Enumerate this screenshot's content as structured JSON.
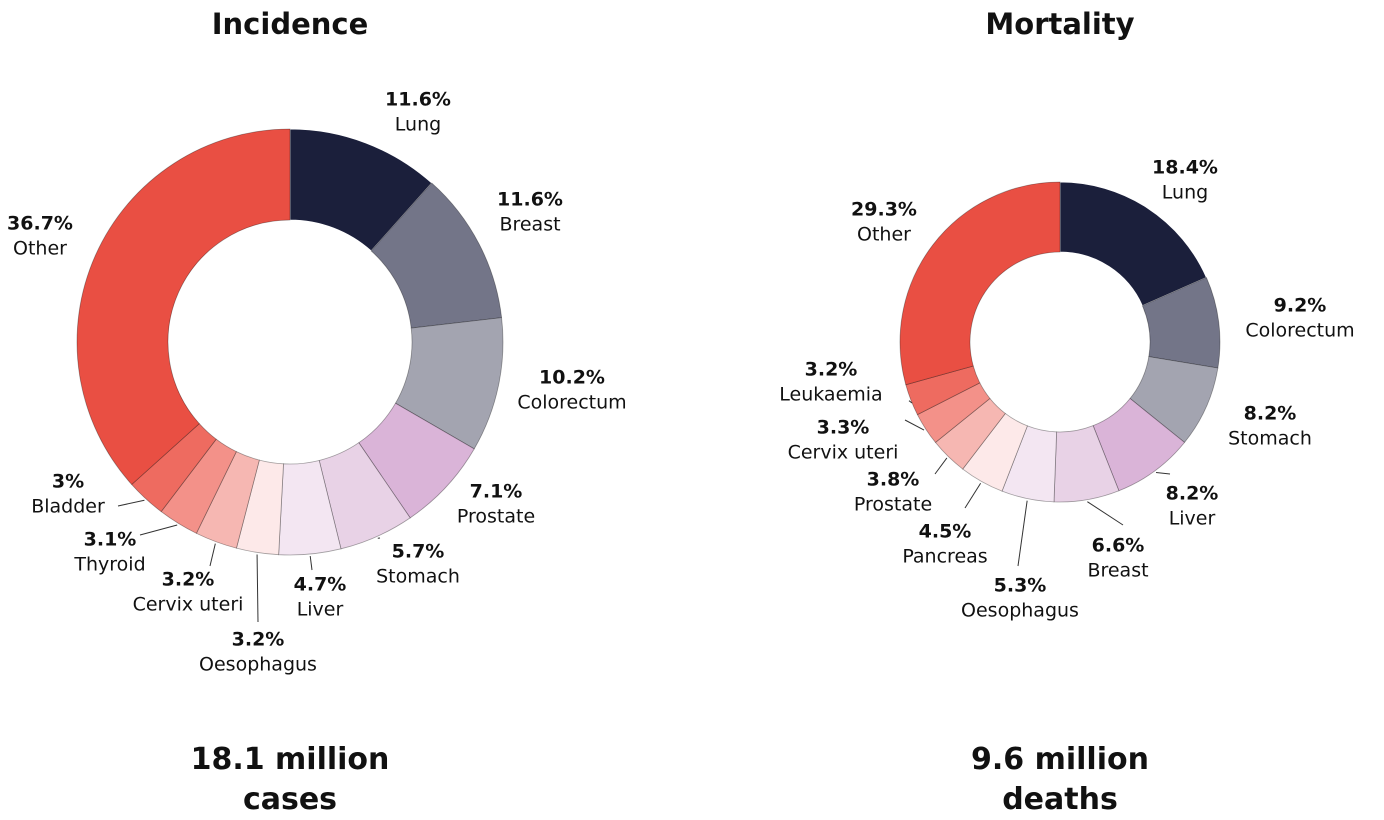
{
  "chart_data": [
    {
      "type": "donut",
      "title": "Incidence",
      "caption": "18.1 million cases",
      "categories": [
        "Lung",
        "Breast",
        "Colorectum",
        "Prostate",
        "Stomach",
        "Liver",
        "Oesophagus",
        "Cervix uteri",
        "Thyroid",
        "Bladder",
        "Other"
      ],
      "values": [
        11.6,
        11.6,
        10.2,
        7.1,
        5.7,
        4.7,
        3.2,
        3.2,
        3.1,
        3,
        36.7
      ],
      "value_labels": [
        "11.6%",
        "11.6%",
        "10.2%",
        "7.1%",
        "5.7%",
        "4.7%",
        "3.2%",
        "3.2%",
        "3.1%",
        "3%",
        "36.7%"
      ],
      "colors": [
        "#1b1f3b",
        "#737588",
        "#a3a4b0",
        "#dab4d8",
        "#e8d2e6",
        "#f3e6f2",
        "#fde9e9",
        "#f6b7b2",
        "#f39189",
        "#ee6b60",
        "#e94f43"
      ]
    },
    {
      "type": "donut",
      "title": "Mortality",
      "caption": "9.6 million deaths",
      "categories": [
        "Lung",
        "Colorectum",
        "Stomach",
        "Liver",
        "Breast",
        "Oesophagus",
        "Pancreas",
        "Prostate",
        "Cervix uteri",
        "Leukaemia",
        "Other"
      ],
      "values": [
        18.4,
        9.2,
        8.2,
        8.2,
        6.6,
        5.3,
        4.5,
        3.8,
        3.3,
        3.2,
        29.3
      ],
      "value_labels": [
        "18.4%",
        "9.2%",
        "8.2%",
        "8.2%",
        "6.6%",
        "5.3%",
        "4.5%",
        "3.8%",
        "3.3%",
        "3.2%",
        "29.3%"
      ],
      "colors": [
        "#1b1f3b",
        "#737588",
        "#a3a4b0",
        "#dab4d8",
        "#e8d2e6",
        "#f3e6f2",
        "#fde9e9",
        "#f6b7b2",
        "#f39189",
        "#ee6b60",
        "#e94f43"
      ]
    }
  ]
}
